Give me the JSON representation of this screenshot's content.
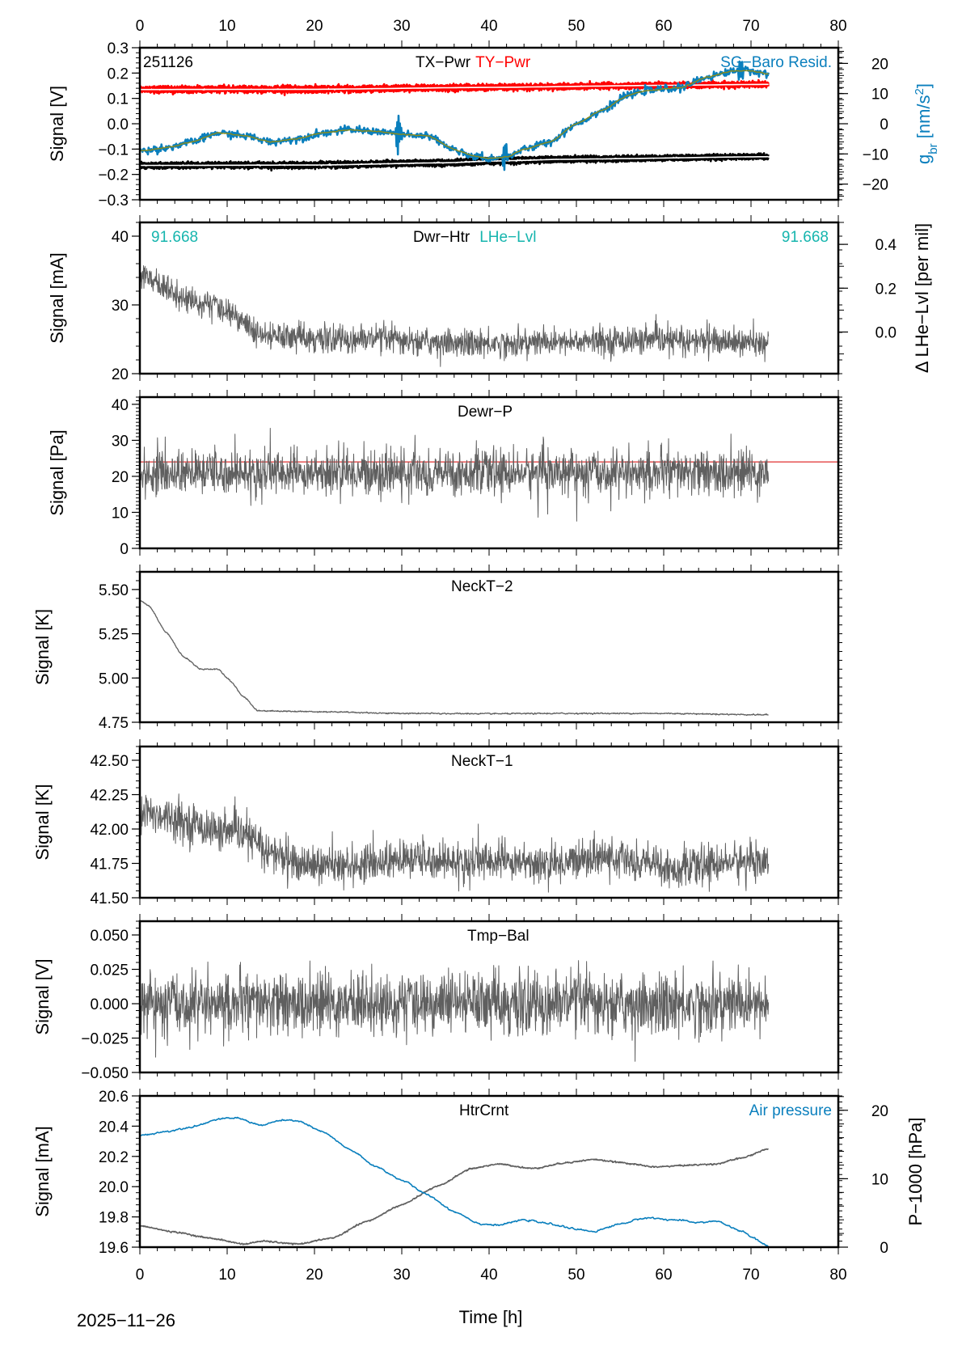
{
  "chart_data": {
    "type": "line",
    "figure_date": "2025−11−26",
    "xlabel": "Time [h]",
    "xlim": [
      0,
      80
    ],
    "x_ticks": [
      "0",
      "10",
      "20",
      "30",
      "40",
      "50",
      "60",
      "70",
      "80"
    ],
    "data_end_h": 72,
    "colors": {
      "trace": "#5f5f5f",
      "red": "#ff0000",
      "blue": "#0a7fbd",
      "olive": "#8c8c1a",
      "teal": "#16b5ae",
      "black": "#000000",
      "reference": "#e03030"
    },
    "panels": [
      {
        "id": "pwr",
        "ylabel": "Signal [V]",
        "ylim": [
          -0.3,
          0.3
        ],
        "y_ticks": [
          "0.3",
          "0.2",
          "0.1",
          "0.0",
          "−0.1",
          "−0.2",
          "−0.3"
        ],
        "y_tick_values": [
          0.3,
          0.2,
          0.1,
          0.0,
          -0.1,
          -0.2,
          -0.3
        ],
        "corner_label": "251126",
        "titles": [
          {
            "text": "TX−Pwr",
            "color": "black"
          },
          {
            "text": "TY−Pwr",
            "color": "red"
          }
        ],
        "right_title": {
          "text": "SG−Baro Resid.",
          "color": "blue"
        },
        "right_axis": {
          "label_main": "g",
          "label_sub": "br",
          "label_unit": "[nm/s",
          "label_sup": "2",
          "label_close": "]",
          "ylim": [
            -25.2,
            25.2
          ],
          "ticks": [
            "20",
            "10",
            "0",
            "−10",
            "−20"
          ],
          "tick_values": [
            20,
            10,
            0,
            -10,
            -20
          ]
        },
        "series": [
          {
            "name": "TY-Pwr upper",
            "color": "red",
            "axis": "left",
            "noise": 0.004,
            "spikes": 0.006,
            "x": [
              0,
              20,
              40,
              60,
              72
            ],
            "y": [
              0.142,
              0.143,
              0.15,
              0.157,
              0.161
            ]
          },
          {
            "name": "TY-Pwr lower",
            "color": "red",
            "axis": "left",
            "noise": 0.004,
            "spikes": 0.008,
            "x": [
              0,
              20,
              40,
              60,
              72
            ],
            "y": [
              0.128,
              0.129,
              0.137,
              0.146,
              0.15
            ]
          },
          {
            "name": "TX-Pwr upper",
            "color": "black",
            "axis": "left",
            "noise": 0.003,
            "spikes": 0.006,
            "x": [
              0,
              20,
              35,
              40,
              50,
              72
            ],
            "y": [
              -0.157,
              -0.155,
              -0.146,
              -0.138,
              -0.132,
              -0.124
            ]
          },
          {
            "name": "TX-Pwr lower",
            "color": "black",
            "axis": "left",
            "noise": 0.003,
            "spikes": 0.008,
            "x": [
              0,
              20,
              35,
              42,
              48,
              72
            ],
            "y": [
              -0.172,
              -0.171,
              -0.162,
              -0.155,
              -0.148,
              -0.136
            ]
          },
          {
            "name": "SG-Baro Resid.",
            "color": "blue",
            "axis": "right",
            "noise": 0.6,
            "spikes": 0.0,
            "x": [
              0,
              3,
              6,
              9,
              12,
              15,
              18,
              21,
              24,
              27,
              30,
              33,
              36,
              38,
              40,
              42,
              44,
              47,
              50,
              53,
              56,
              58,
              62,
              65,
              68,
              70,
              72
            ],
            "y": [
              -9,
              -8,
              -6,
              -3,
              -4,
              -6,
              -5,
              -3,
              -2,
              -2.5,
              -3.5,
              -4,
              -8.5,
              -10.5,
              -11.5,
              -11,
              -8.5,
              -6,
              0,
              4.5,
              9.5,
              11,
              12,
              15.5,
              17.5,
              17.5,
              16.5
            ],
            "bursts": [
              {
                "x": 29.6,
                "amp": 12
              },
              {
                "x": 41.8,
                "amp": 8
              },
              {
                "x": 68.8,
                "amp": 9
              }
            ]
          },
          {
            "name": "SG-Baro Resid. smoothed",
            "color": "olive",
            "axis": "right",
            "noise": 0.15,
            "spikes": 0.0,
            "x": [
              0,
              3,
              6,
              9,
              12,
              15,
              18,
              21,
              24,
              27,
              30,
              33,
              36,
              38,
              40,
              42,
              44,
              47,
              50,
              53,
              56,
              58,
              62,
              65,
              68,
              70,
              72
            ],
            "y": [
              -9,
              -8,
              -6,
              -3,
              -4,
              -6,
              -5,
              -3,
              -2,
              -2.5,
              -3.5,
              -4,
              -8.5,
              -10.5,
              -11.5,
              -11,
              -8.5,
              -6,
              0,
              4.5,
              9.5,
              11,
              12,
              15.5,
              17.5,
              17.5,
              16.5
            ]
          }
        ]
      },
      {
        "id": "dwr-htr",
        "ylabel": "Signal [mA]",
        "ylim": [
          20,
          42
        ],
        "y_ticks": [
          "40",
          "30",
          "20"
        ],
        "y_tick_values": [
          40,
          30,
          20
        ],
        "corner_label": "91.668",
        "corner_label_right": "91.668",
        "titles": [
          {
            "text": "Dwr−Htr",
            "color": "black"
          },
          {
            "text": "LHe−Lvl",
            "color": "teal"
          }
        ],
        "right_axis": {
          "label_main": "Δ LHe−Lvl [per mil]",
          "ylim": [
            -0.19,
            0.5
          ],
          "ticks": [
            "0.4",
            "0.2",
            "0.0"
          ],
          "tick_values": [
            0.4,
            0.2,
            0.0
          ]
        },
        "series": [
          {
            "name": "Dwr-Htr",
            "color": "trace",
            "axis": "left",
            "noise": 1.0,
            "spikes": 1.5,
            "x": [
              0,
              2,
              5,
              8,
              11,
              13.5,
              16,
              25,
              40,
              55,
              65,
              72
            ],
            "y": [
              35,
              33,
              31,
              30,
              28.5,
              25.5,
              25.3,
              25,
              24.4,
              24.8,
              24.8,
              24.3
            ]
          }
        ]
      },
      {
        "id": "dewr-p",
        "ylabel": "Signal [Pa]",
        "ylim": [
          0,
          42
        ],
        "y_ticks": [
          "40",
          "30",
          "20",
          "10",
          "0"
        ],
        "y_tick_values": [
          40,
          30,
          20,
          10,
          0
        ],
        "titles": [
          {
            "text": "Dewr−P",
            "color": "black"
          }
        ],
        "reference_line": {
          "value": 24,
          "color": "reference"
        },
        "series": [
          {
            "name": "Dewr-P",
            "color": "trace",
            "axis": "left",
            "noise": 3.0,
            "spikes": 9,
            "x": [
              0,
              72
            ],
            "y": [
              21,
              21
            ]
          }
        ]
      },
      {
        "id": "neckt-2",
        "ylabel": "Signal [K]",
        "ylim": [
          4.75,
          5.6
        ],
        "y_ticks": [
          "5.50",
          "5.25",
          "5.00",
          "4.75"
        ],
        "y_tick_values": [
          5.5,
          5.25,
          5.0,
          4.75
        ],
        "titles": [
          {
            "text": "NeckT−2",
            "color": "black"
          }
        ],
        "series": [
          {
            "name": "NeckT-2",
            "color": "trace",
            "axis": "left",
            "noise": 0.003,
            "spikes": 0.0,
            "x": [
              0,
              1,
              3,
              5,
              7,
              9,
              10,
              12,
              13.5,
              20,
              30,
              40,
              50,
              60,
              72
            ],
            "y": [
              5.44,
              5.41,
              5.26,
              5.12,
              5.05,
              5.05,
              5.0,
              4.89,
              4.815,
              4.81,
              4.8,
              4.798,
              4.8,
              4.8,
              4.792
            ]
          }
        ]
      },
      {
        "id": "neckt-1",
        "ylabel": "Signal [K]",
        "ylim": [
          41.5,
          42.6
        ],
        "y_ticks": [
          "42.50",
          "42.25",
          "42.00",
          "41.75",
          "41.50"
        ],
        "y_tick_values": [
          42.5,
          42.25,
          42.0,
          41.75,
          41.5
        ],
        "titles": [
          {
            "text": "NeckT−1",
            "color": "black"
          }
        ],
        "series": [
          {
            "name": "NeckT-1",
            "color": "trace",
            "axis": "left",
            "noise": 0.07,
            "spikes": 0.07,
            "x": [
              0,
              3,
              6,
              9,
              12,
              15,
              18,
              22,
              27,
              32,
              37,
              42,
              47,
              52,
              57,
              62,
              67,
              72
            ],
            "y": [
              42.12,
              42.1,
              42.04,
              41.98,
              41.96,
              41.83,
              41.75,
              41.73,
              41.76,
              41.78,
              41.76,
              41.77,
              41.74,
              41.8,
              41.77,
              41.7,
              41.76,
              41.76
            ]
          }
        ]
      },
      {
        "id": "tmp-bal",
        "ylabel": "Signal [V]",
        "ylim": [
          -0.05,
          0.06
        ],
        "y_ticks": [
          "0.050",
          "0.025",
          "0.000",
          "−0.025",
          "−0.050"
        ],
        "y_tick_values": [
          0.05,
          0.025,
          0.0,
          -0.025,
          -0.05
        ],
        "titles": [
          {
            "text": "Tmp−Bal",
            "color": "black"
          }
        ],
        "series": [
          {
            "name": "Tmp-Bal",
            "color": "trace",
            "axis": "left",
            "noise": 0.011,
            "spikes": 0.02,
            "x": [
              0,
              72
            ],
            "y": [
              0.0,
              0.0
            ]
          }
        ]
      },
      {
        "id": "htrcrnt",
        "ylabel": "Signal [mA]",
        "ylim": [
          19.6,
          20.6
        ],
        "y_ticks": [
          "20.6",
          "20.4",
          "20.2",
          "20.0",
          "19.8",
          "19.6"
        ],
        "y_tick_values": [
          20.6,
          20.4,
          20.2,
          20.0,
          19.8,
          19.6
        ],
        "titles": [
          {
            "text": "HtrCrnt",
            "color": "black"
          }
        ],
        "right_title": {
          "text": "Air pressure",
          "color": "blue"
        },
        "right_axis": {
          "label_main": "P−1000 [hPa]",
          "label_color": "blue",
          "ylim": [
            0,
            22.1
          ],
          "ticks": [
            "20",
            "10",
            "0"
          ],
          "tick_values": [
            20,
            10,
            0
          ]
        },
        "series": [
          {
            "name": "HtrCrnt",
            "color": "trace",
            "axis": "left",
            "noise": 0.004,
            "spikes": 0.0,
            "x": [
              0,
              4,
              8,
              12,
              14,
              18,
              22,
              26,
              30,
              34,
              38,
              41,
              45,
              49,
              52,
              55,
              59,
              62,
              66,
              69,
              72
            ],
            "y": [
              19.74,
              19.7,
              19.66,
              19.62,
              19.64,
              19.62,
              19.66,
              19.77,
              19.88,
              20.0,
              20.12,
              20.15,
              20.12,
              20.16,
              20.18,
              20.16,
              20.13,
              20.14,
              20.15,
              20.19,
              20.25
            ]
          },
          {
            "name": "Air pressure",
            "color": "blue",
            "axis": "right",
            "noise": 0.12,
            "spikes": 0.0,
            "x": [
              0,
              3,
              6,
              9,
              11,
              14,
              16,
              18,
              21,
              24,
              27,
              30,
              33,
              36,
              39,
              41,
              44,
              47,
              50,
              52,
              55,
              58,
              61,
              64,
              66,
              69,
              70,
              72
            ],
            "y": [
              16.3,
              16.9,
              17.6,
              18.7,
              18.9,
              17.8,
              18.5,
              18.5,
              16.8,
              14.3,
              11.8,
              9.8,
              7.6,
              5.2,
              3.4,
              3.2,
              4.0,
              3.4,
              2.6,
              2.3,
              3.4,
              4.3,
              4.0,
              3.6,
              3.8,
              2.3,
              1.5,
              0.1
            ]
          }
        ]
      }
    ]
  }
}
